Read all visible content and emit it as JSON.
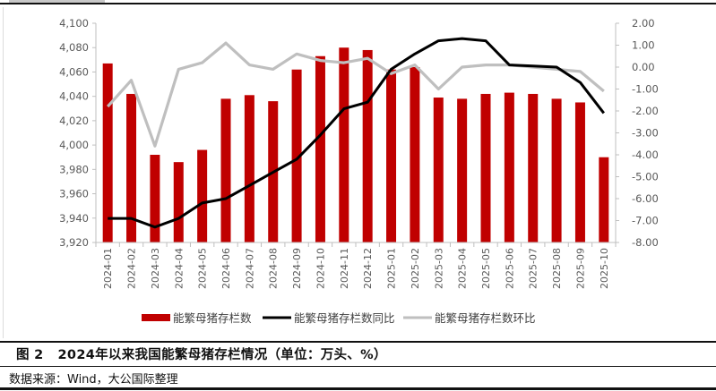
{
  "figure": {
    "number_label": "图 2",
    "title": "2024年以来我国能繁母猪存栏情况（单位：万头、%）",
    "source": "数据来源：Wind，大公国际整理"
  },
  "colors": {
    "bar": "#C00000",
    "yoy_line": "#000000",
    "mom_line": "#BFBFBF",
    "axis": "#BFBFBF",
    "tick_text": "#595959"
  },
  "chart_data": {
    "type": "bar",
    "title": "2024年以来我国能繁母猪存栏情况（单位：万头、%）",
    "xlabel": "",
    "ylabel": "",
    "categories": [
      "2024-01",
      "2024-02",
      "2024-03",
      "2024-04",
      "2024-05",
      "2024-06",
      "2024-07",
      "2024-08",
      "2024-09",
      "2024-10",
      "2024-11",
      "2024-12",
      "2025-01",
      "2025-02",
      "2025-03",
      "2025-04",
      "2025-05",
      "2025-06",
      "2025-07",
      "2025-08",
      "2025-09",
      "2025-10"
    ],
    "series": [
      {
        "name": "能繁母猪存栏数",
        "type": "bar",
        "axis": "left",
        "values": [
          4067,
          4042,
          3992,
          3986,
          3996,
          4038,
          4041,
          4036,
          4062,
          4073,
          4080,
          4078,
          4062,
          4064,
          4039,
          4038,
          4042,
          4043,
          4042,
          4038,
          4035,
          3990
        ]
      },
      {
        "name": "能繁母猪存栏数同比",
        "type": "line",
        "axis": "right",
        "values": [
          -6.9,
          -6.9,
          -7.3,
          -6.9,
          -6.2,
          -6.0,
          -5.4,
          -4.8,
          -4.2,
          -3.1,
          -1.9,
          -1.6,
          -0.1,
          0.6,
          1.2,
          1.3,
          1.2,
          0.1,
          0.05,
          0.0,
          -0.7,
          -2.1
        ]
      },
      {
        "name": "能繁母猪存栏数环比",
        "type": "line",
        "axis": "right",
        "values": [
          -1.8,
          -0.6,
          -3.6,
          -0.1,
          0.2,
          1.1,
          0.1,
          -0.1,
          0.6,
          0.3,
          0.2,
          0.4,
          -0.3,
          0.1,
          -1.0,
          0.0,
          0.1,
          0.1,
          0.0,
          -0.1,
          -0.2,
          -1.1
        ]
      }
    ],
    "left_axis": {
      "ylim": [
        3920,
        4100
      ],
      "ticks": [
        "4,100",
        "4,080",
        "4,060",
        "4,040",
        "4,020",
        "4,000",
        "3,980",
        "3,960",
        "3,940",
        "3,920"
      ]
    },
    "right_axis": {
      "ylim": [
        -8,
        2
      ],
      "ticks": [
        "2.00",
        "1.00",
        "0.00",
        "-1.00",
        "-2.00",
        "-3.00",
        "-4.00",
        "-5.00",
        "-6.00",
        "-7.00",
        "-8.00"
      ]
    },
    "grid": false,
    "legend_position": "bottom"
  },
  "legend": [
    {
      "label": "能繁母猪存栏数",
      "kind": "bar"
    },
    {
      "label": "能繁母猪存栏数同比",
      "kind": "line-black"
    },
    {
      "label": "能繁母猪存栏数环比",
      "kind": "line-grey"
    }
  ]
}
